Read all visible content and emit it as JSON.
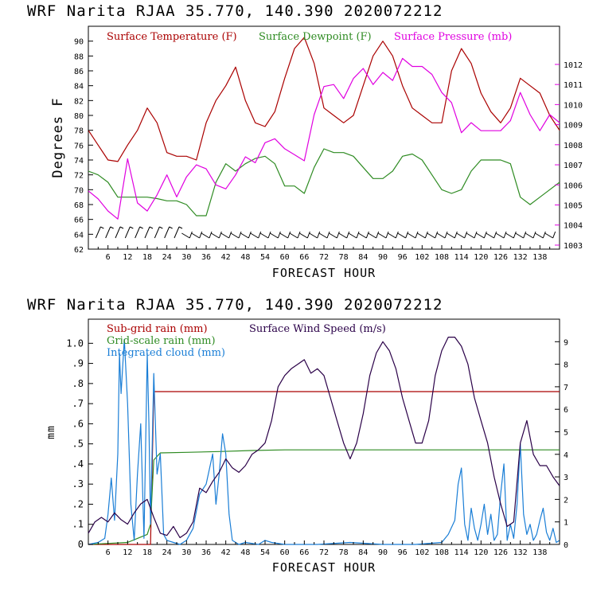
{
  "chart_data": [
    {
      "type": "line",
      "title": "WRF   Narita RJAA    35.770, 140.390  2020072212",
      "xlabel": "FORECAST HOUR",
      "ylabel": "Degrees F",
      "xlim": [
        0,
        144
      ],
      "xticks": [
        "6",
        "12",
        "18",
        "24",
        "30",
        "36",
        "42",
        "48",
        "54",
        "60",
        "66",
        "72",
        "78",
        "84",
        "90",
        "96",
        "102",
        "108",
        "114",
        "120",
        "126",
        "132",
        "138"
      ],
      "ylim": [
        62,
        92
      ],
      "yticks": [
        "62",
        "64",
        "66",
        "68",
        "70",
        "72",
        "74",
        "76",
        "78",
        "80",
        "82",
        "84",
        "86",
        "88",
        "90"
      ],
      "y2lim": [
        1002.8,
        1013.9
      ],
      "y2ticks": [
        "1003",
        "1004",
        "1005",
        "1006",
        "1007",
        "1008",
        "1009",
        "1010",
        "1011",
        "1012"
      ],
      "grid": false,
      "legend": "top",
      "series": [
        {
          "name": "Surface Temperature (F)",
          "color": "#aa0000",
          "axis": "left",
          "x": [
            0,
            3,
            6,
            9,
            12,
            15,
            18,
            21,
            24,
            27,
            30,
            33,
            36,
            39,
            42,
            45,
            48,
            51,
            54,
            57,
            60,
            63,
            66,
            69,
            72,
            75,
            78,
            81,
            84,
            87,
            90,
            93,
            96,
            99,
            102,
            105,
            108,
            111,
            114,
            117,
            120,
            123,
            126,
            129,
            132,
            135,
            138,
            141,
            144
          ],
          "y": [
            78,
            76,
            74,
            73.8,
            76,
            78,
            81,
            79,
            75,
            74.5,
            74.5,
            74,
            79,
            82,
            84,
            86.5,
            82,
            79,
            78.5,
            80.5,
            85,
            89,
            90.5,
            87,
            81,
            80,
            79,
            80,
            84,
            88,
            90,
            88,
            84,
            81,
            80,
            79,
            79,
            86,
            89,
            87,
            83,
            80.5,
            79,
            81,
            85,
            84,
            83,
            80,
            78
          ]
        },
        {
          "name": "Surface Dewpoint (F)",
          "color": "#2e8b22",
          "axis": "left",
          "x": [
            0,
            3,
            6,
            9,
            12,
            15,
            18,
            21,
            24,
            27,
            30,
            33,
            36,
            39,
            42,
            45,
            48,
            51,
            54,
            57,
            60,
            63,
            66,
            69,
            72,
            75,
            78,
            81,
            84,
            87,
            90,
            93,
            96,
            99,
            102,
            105,
            108,
            111,
            114,
            117,
            120,
            123,
            126,
            129,
            132,
            135,
            138,
            141,
            144
          ],
          "y": [
            72.5,
            72,
            71,
            69,
            69,
            69,
            69,
            68.8,
            68.5,
            68.5,
            68,
            66.5,
            66.5,
            71,
            73.5,
            72.5,
            73.5,
            74.2,
            74.5,
            73.5,
            70.5,
            70.5,
            69.5,
            73,
            75.5,
            75,
            75,
            74.5,
            73,
            71.5,
            71.5,
            72.5,
            74.5,
            74.8,
            74,
            72,
            70,
            69.5,
            70,
            72.5,
            74,
            74,
            74,
            73.5,
            69,
            68,
            69,
            70,
            71
          ]
        },
        {
          "name": "Surface Pressure (mb)",
          "color": "#e000e0",
          "axis": "right",
          "x": [
            0,
            3,
            6,
            9,
            12,
            15,
            18,
            21,
            24,
            27,
            30,
            33,
            36,
            39,
            42,
            45,
            48,
            51,
            54,
            57,
            60,
            63,
            66,
            69,
            72,
            75,
            78,
            81,
            84,
            87,
            90,
            93,
            96,
            99,
            102,
            105,
            108,
            111,
            114,
            117,
            120,
            123,
            126,
            129,
            132,
            135,
            138,
            141,
            144
          ],
          "y": [
            1005.7,
            1005.3,
            1004.7,
            1004.3,
            1007.3,
            1005.1,
            1004.7,
            1005.5,
            1006.5,
            1005.4,
            1006.4,
            1007.0,
            1006.8,
            1006.0,
            1005.8,
            1006.5,
            1007.4,
            1007.1,
            1008.1,
            1008.3,
            1007.8,
            1007.5,
            1007.2,
            1009.5,
            1010.9,
            1011.0,
            1010.3,
            1011.3,
            1011.8,
            1011.0,
            1011.6,
            1011.2,
            1012.3,
            1011.9,
            1011.9,
            1011.5,
            1010.6,
            1010.1,
            1008.6,
            1009.1,
            1008.7,
            1008.7,
            1008.7,
            1009.2,
            1010.6,
            1009.5,
            1008.7,
            1009.5,
            1009.1
          ]
        }
      ],
      "wind_barbs": "shown"
    },
    {
      "type": "line",
      "title": "WRF   Narita RJAA    35.770, 140.390  2020072212",
      "xlabel": "FORECAST HOUR",
      "ylabel": "mm",
      "xlim": [
        0,
        144
      ],
      "xticks": [
        "6",
        "12",
        "18",
        "24",
        "30",
        "36",
        "42",
        "48",
        "54",
        "60",
        "66",
        "72",
        "78",
        "84",
        "90",
        "96",
        "102",
        "108",
        "114",
        "120",
        "126",
        "132",
        "138"
      ],
      "ylim": [
        0,
        1.12
      ],
      "yticks": [
        "0",
        ".1",
        ".2",
        ".3",
        ".4",
        ".5",
        ".6",
        ".7",
        ".8",
        ".9",
        "1.0"
      ],
      "y2lim": [
        0,
        10
      ],
      "y2ticks": [
        "0",
        "1",
        "2",
        "3",
        "4",
        "5",
        "6",
        "7",
        "8",
        "9"
      ],
      "grid": false,
      "legend": "top-left",
      "series": [
        {
          "name": "Sub-grid rain (mm)",
          "color": "#aa0000",
          "axis": "left",
          "x": [
            0,
            19,
            20,
            144
          ],
          "y": [
            0,
            0,
            0.76,
            0.76
          ]
        },
        {
          "name": "Grid-scale rain (mm)",
          "color": "#2e8b22",
          "axis": "left",
          "x": [
            0,
            12,
            15,
            18,
            19,
            20,
            22,
            30,
            40,
            50,
            60,
            80,
            100,
            120,
            144
          ],
          "y": [
            0,
            0.01,
            0.03,
            0.05,
            0.1,
            0.42,
            0.455,
            0.458,
            0.462,
            0.467,
            0.47,
            0.47,
            0.47,
            0.47,
            0.47
          ]
        },
        {
          "name": "Integrated cloud (mm)",
          "color": "#1a7ed6",
          "axis": "left",
          "x": [
            0,
            3,
            5,
            6,
            7,
            8,
            9,
            9.5,
            10,
            11,
            12,
            13,
            14,
            15,
            16,
            17,
            18,
            18.5,
            19,
            20,
            21,
            22,
            23,
            24,
            26,
            28,
            30,
            32,
            34,
            36,
            38,
            39,
            40,
            41,
            42,
            43,
            44,
            46,
            48,
            52,
            54,
            56,
            60,
            70,
            80,
            90,
            100,
            108,
            110,
            112,
            113,
            114,
            115,
            116,
            117,
            118,
            119,
            120,
            121,
            122,
            123,
            124,
            125,
            126,
            127,
            128,
            129,
            130,
            131,
            132,
            133,
            134,
            135,
            136,
            137,
            138,
            139,
            140,
            141,
            142,
            143,
            144
          ],
          "y": [
            0,
            0.01,
            0.03,
            0.15,
            0.33,
            0.12,
            0.45,
            0.95,
            0.75,
            1.02,
            0.7,
            0.2,
            0.02,
            0.35,
            0.6,
            0.03,
            0.95,
            0.6,
            0.1,
            0.85,
            0.35,
            0.45,
            0.05,
            0.02,
            0.01,
            0.0,
            0.02,
            0.08,
            0.25,
            0.3,
            0.45,
            0.2,
            0.35,
            0.55,
            0.45,
            0.15,
            0.02,
            0.0,
            0.01,
            0.0,
            0.02,
            0.01,
            0.0,
            0.0,
            0.01,
            0.0,
            0.0,
            0.01,
            0.05,
            0.12,
            0.3,
            0.38,
            0.1,
            0.02,
            0.18,
            0.08,
            0.02,
            0.1,
            0.2,
            0.05,
            0.15,
            0.02,
            0.05,
            0.25,
            0.4,
            0.02,
            0.1,
            0.03,
            0.2,
            0.5,
            0.15,
            0.05,
            0.1,
            0.02,
            0.05,
            0.12,
            0.18,
            0.06,
            0.02,
            0.08,
            0.01,
            0.02
          ]
        },
        {
          "name": "Surface Wind Speed (m/s)",
          "color": "#2a0048",
          "axis": "right",
          "x": [
            0,
            2,
            4,
            6,
            8,
            10,
            12,
            14,
            16,
            18,
            20,
            22,
            24,
            26,
            28,
            30,
            32,
            34,
            36,
            38,
            40,
            42,
            44,
            46,
            48,
            50,
            52,
            54,
            56,
            58,
            60,
            62,
            64,
            66,
            68,
            70,
            72,
            74,
            76,
            78,
            80,
            82,
            84,
            86,
            88,
            90,
            92,
            94,
            96,
            98,
            100,
            102,
            104,
            106,
            108,
            110,
            112,
            114,
            116,
            118,
            120,
            122,
            124,
            126,
            128,
            130,
            132,
            134,
            136,
            138,
            140,
            142,
            144
          ],
          "y": [
            0.5,
            1.0,
            1.2,
            1.0,
            1.4,
            1.1,
            0.9,
            1.4,
            1.8,
            2.0,
            1.2,
            0.5,
            0.4,
            0.8,
            0.3,
            0.5,
            1.0,
            2.5,
            2.3,
            2.8,
            3.2,
            3.8,
            3.4,
            3.2,
            3.5,
            4.0,
            4.2,
            4.5,
            5.5,
            7.0,
            7.5,
            7.8,
            8.0,
            8.2,
            7.6,
            7.8,
            7.5,
            6.5,
            5.5,
            4.5,
            3.8,
            4.5,
            5.8,
            7.5,
            8.5,
            9.0,
            8.6,
            7.8,
            6.5,
            5.5,
            4.5,
            4.5,
            5.5,
            7.5,
            8.6,
            9.2,
            9.2,
            8.8,
            8.0,
            6.5,
            5.5,
            4.5,
            3.0,
            1.8,
            0.8,
            1.0,
            4.5,
            5.5,
            4.0,
            3.5,
            3.5,
            3.0,
            2.6
          ]
        }
      ]
    }
  ]
}
